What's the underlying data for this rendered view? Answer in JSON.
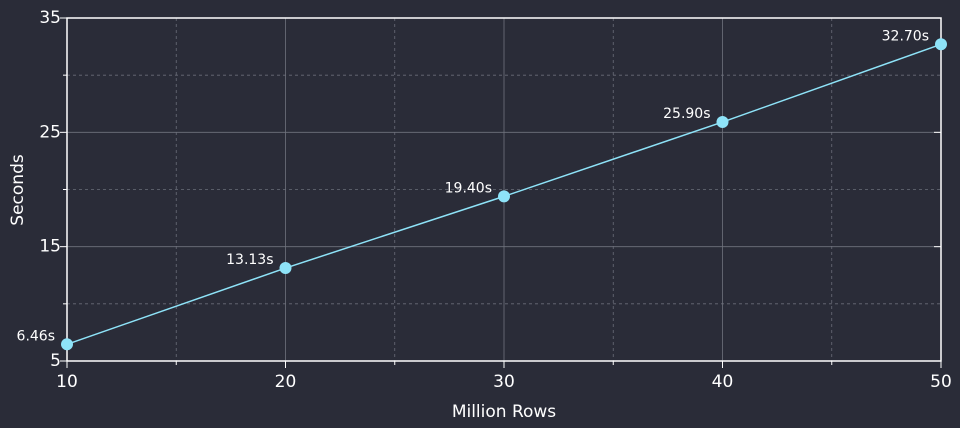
{
  "chart_data": {
    "type": "line",
    "x_label": "Million Rows",
    "y_label": "Seconds",
    "x": [
      10,
      20,
      30,
      40,
      50
    ],
    "series": [
      {
        "name": "Seconds",
        "color": "#8ee3f8",
        "values": [
          6.46,
          13.13,
          19.4,
          25.9,
          32.7
        ],
        "value_labels": [
          "6.46s",
          "13.13s",
          "19.40s",
          "25.90s",
          "32.70s"
        ]
      }
    ],
    "xlim": [
      10,
      50
    ],
    "xticks": [
      10,
      20,
      30,
      40,
      50
    ],
    "xminor": [
      15,
      25,
      35,
      45
    ],
    "ylim": [
      5,
      35
    ],
    "yticks": [
      5,
      15,
      25,
      35
    ],
    "yminor": [
      10,
      20,
      30
    ],
    "grid": true
  }
}
